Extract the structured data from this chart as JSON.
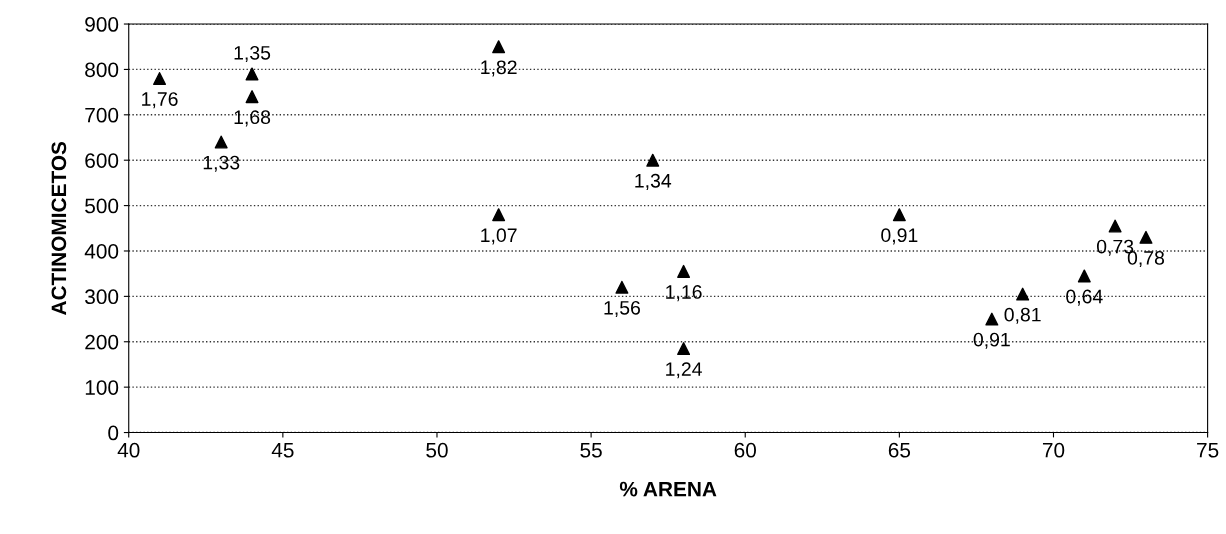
{
  "chart_data": {
    "type": "scatter",
    "xlabel": "% ARENA",
    "ylabel": "ACTINOMICETOS",
    "x": [
      41,
      44,
      44,
      43,
      52,
      52,
      57,
      56,
      58,
      58,
      65,
      68,
      69,
      71,
      72,
      73
    ],
    "values": [
      780,
      790,
      740,
      640,
      850,
      480,
      600,
      320,
      355,
      185,
      480,
      250,
      305,
      345,
      455,
      430
    ],
    "annotations": [
      {
        "text": "1,76",
        "x": 41,
        "y": 780
      },
      {
        "text": "1,35",
        "x": 44,
        "y": 790
      },
      {
        "text": "1,68",
        "x": 44,
        "y": 740
      },
      {
        "text": "1,33",
        "x": 43,
        "y": 640
      },
      {
        "text": "1,82",
        "x": 52,
        "y": 850
      },
      {
        "text": "1,07",
        "x": 52,
        "y": 480
      },
      {
        "text": "1,34",
        "x": 57,
        "y": 600
      },
      {
        "text": "1,56",
        "x": 56,
        "y": 320
      },
      {
        "text": "1,16",
        "x": 58,
        "y": 355
      },
      {
        "text": "1,24",
        "x": 58,
        "y": 185
      },
      {
        "text": "0,91",
        "x": 65,
        "y": 480
      },
      {
        "text": "0,91",
        "x": 68,
        "y": 250
      },
      {
        "text": "0,81",
        "x": 69,
        "y": 305
      },
      {
        "text": "0,64",
        "x": 71,
        "y": 345
      },
      {
        "text": "0,73",
        "x": 72,
        "y": 455
      },
      {
        "text": "0,78",
        "x": 73,
        "y": 430
      }
    ],
    "color": "#000000",
    "marker": "triangle",
    "grid": "y",
    "xlim": [
      40,
      75
    ],
    "xticks": [
      40,
      45,
      50,
      55,
      60,
      65,
      70,
      75
    ],
    "ylim": [
      0,
      900
    ],
    "yticks": [
      0,
      100,
      200,
      300,
      400,
      500,
      600,
      700,
      800,
      900
    ]
  }
}
